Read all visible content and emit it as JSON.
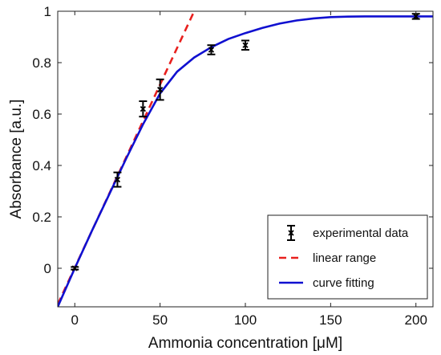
{
  "chart_data": {
    "type": "scatter",
    "title": "",
    "xlabel": "Ammonia concentration [μM]",
    "ylabel": "Absorbance [a.u.]",
    "xlim": [
      -10,
      210
    ],
    "ylim": [
      -0.15,
      1.0
    ],
    "xticks": [
      0,
      50,
      100,
      150,
      200
    ],
    "yticks": [
      0,
      0.2,
      0.4,
      0.6,
      0.8,
      1
    ],
    "ytick_labels": [
      "0",
      "0.2",
      "0.4",
      "0.6",
      "0.8",
      "1"
    ],
    "grid": false,
    "legend_position": "bottom-right",
    "series": [
      {
        "name": "experimental data",
        "kind": "errorbar",
        "color": "#000000",
        "x": [
          0,
          25,
          40,
          50,
          80,
          100,
          200
        ],
        "y": [
          0.0,
          0.345,
          0.62,
          0.695,
          0.85,
          0.868,
          0.98
        ],
        "yerr": [
          0.005,
          0.028,
          0.03,
          0.04,
          0.018,
          0.018,
          0.01
        ]
      },
      {
        "name": "linear range",
        "kind": "line",
        "style": "dashed",
        "color": "#e8201e",
        "x": [
          -10,
          70
        ],
        "y": [
          -0.14,
          1.0
        ]
      },
      {
        "name": "curve fitting",
        "kind": "line",
        "style": "solid",
        "color": "#1010d0",
        "x": [
          -10,
          0,
          10,
          20,
          30,
          40,
          50,
          60,
          70,
          80,
          90,
          100,
          110,
          120,
          130,
          140,
          150,
          160,
          170,
          180,
          190,
          200,
          210
        ],
        "y": [
          -0.15,
          0.0,
          0.145,
          0.285,
          0.425,
          0.56,
          0.68,
          0.765,
          0.82,
          0.86,
          0.892,
          0.915,
          0.935,
          0.952,
          0.964,
          0.972,
          0.977,
          0.979,
          0.98,
          0.98,
          0.98,
          0.98,
          0.98
        ]
      }
    ]
  }
}
